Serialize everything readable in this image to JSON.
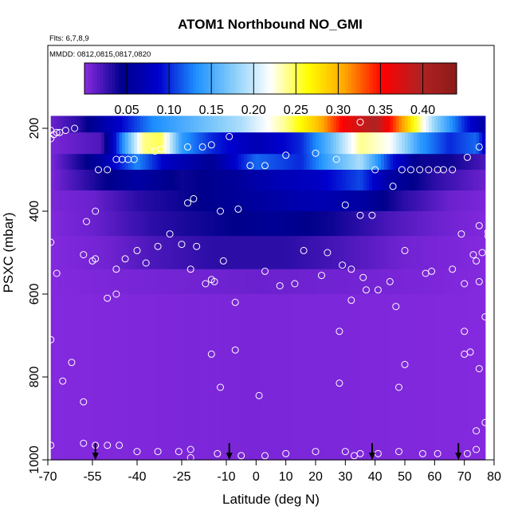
{
  "chart_data": {
    "type": "heatmap",
    "title": "ATOM1 Northbound NO_GMI",
    "notes": [
      "Flts: 6,7,8,9",
      "MMDD: 0812,0815,0817,0820"
    ],
    "xlabel": "Latitude (deg N)",
    "ylabel": "PSXC (mbar)",
    "xlim": [
      -70,
      80
    ],
    "ylim": [
      1000,
      0
    ],
    "x_ticks": [
      -70,
      -55,
      -40,
      -25,
      -10,
      0,
      10,
      20,
      30,
      40,
      50,
      60,
      70,
      80
    ],
    "x_tick_labels": [
      "-70",
      "-55",
      "-40",
      "-25",
      "-10",
      "0",
      "10",
      "20",
      "30",
      "40",
      "50",
      "60",
      "70",
      "80"
    ],
    "y_ticks": [
      200,
      400,
      600,
      800,
      1000
    ],
    "y_tick_labels": [
      "200",
      "400",
      "600",
      "800",
      "1000"
    ],
    "colorbar": {
      "min": 0,
      "max": 0.44,
      "ticks": [
        0.05,
        0.1,
        0.15,
        0.2,
        0.25,
        0.3,
        0.35,
        0.4
      ],
      "tick_labels": [
        "0.05",
        "0.10",
        "0.15",
        "0.20",
        "0.25",
        "0.30",
        "0.35",
        "0.40"
      ],
      "colors": [
        "#8a2be2",
        "#00008b",
        "#0000cd",
        "#1e90ff",
        "#87cefa",
        "#ffffff",
        "#ffff00",
        "#ffa500",
        "#ff0000",
        "#b22222",
        "#8b1a1a"
      ]
    },
    "field": {
      "x_range": [
        -69,
        77
      ],
      "p_top": 170,
      "p_bottom": 1000,
      "bands": [
        {
          "p": [
            170,
            210
          ],
          "profile": [
            [
              -69,
              0.01
            ],
            [
              -60,
              0.03
            ],
            [
              -50,
              0.07
            ],
            [
              -35,
              0.13
            ],
            [
              -20,
              0.16
            ],
            [
              -5,
              0.19
            ],
            [
              10,
              0.24
            ],
            [
              20,
              0.29
            ],
            [
              30,
              0.36
            ],
            [
              40,
              0.4
            ],
            [
              50,
              0.3
            ],
            [
              60,
              0.18
            ],
            [
              70,
              0.1
            ],
            [
              77,
              0.06
            ]
          ]
        },
        {
          "p": [
            210,
            262
          ],
          "profile": [
            [
              -69,
              0.005
            ],
            [
              -52,
              0.02
            ],
            [
              -45,
              0.13
            ],
            [
              -38,
              0.24
            ],
            [
              -32,
              0.25
            ],
            [
              -25,
              0.14
            ],
            [
              -15,
              0.1
            ],
            [
              0,
              0.07
            ],
            [
              15,
              0.1
            ],
            [
              25,
              0.16
            ],
            [
              35,
              0.24
            ],
            [
              45,
              0.22
            ],
            [
              55,
              0.14
            ],
            [
              65,
              0.1
            ],
            [
              74,
              0.12
            ],
            [
              77,
              0.08
            ]
          ]
        },
        {
          "p": [
            262,
            300
          ],
          "profile": [
            [
              -69,
              0.005
            ],
            [
              -52,
              0.06
            ],
            [
              -40,
              0.13
            ],
            [
              -30,
              0.08
            ],
            [
              -15,
              0.05
            ],
            [
              0,
              0.12
            ],
            [
              15,
              0.1
            ],
            [
              25,
              0.15
            ],
            [
              35,
              0.19
            ],
            [
              45,
              0.1
            ],
            [
              55,
              0.04
            ],
            [
              65,
              0.04
            ],
            [
              77,
              0.02
            ]
          ]
        },
        {
          "p": [
            300,
            350
          ],
          "profile": [
            [
              -69,
              0.005
            ],
            [
              -52,
              0.04
            ],
            [
              -40,
              0.06
            ],
            [
              -25,
              0.04
            ],
            [
              -10,
              0.05
            ],
            [
              5,
              0.07
            ],
            [
              20,
              0.08
            ],
            [
              35,
              0.11
            ],
            [
              45,
              0.06
            ],
            [
              60,
              0.03
            ],
            [
              77,
              0.01
            ]
          ]
        },
        {
          "p": [
            350,
            400
          ],
          "profile": [
            [
              -69,
              0.005
            ],
            [
              -55,
              0.01
            ],
            [
              -40,
              0.03
            ],
            [
              -25,
              0.04
            ],
            [
              -10,
              0.05
            ],
            [
              5,
              0.06
            ],
            [
              20,
              0.07
            ],
            [
              35,
              0.06
            ],
            [
              50,
              0.03
            ],
            [
              65,
              0.01
            ],
            [
              77,
              0.005
            ]
          ]
        },
        {
          "p": [
            400,
            460
          ],
          "profile": [
            [
              -69,
              0.003
            ],
            [
              -55,
              0.01
            ],
            [
              -35,
              0.03
            ],
            [
              -15,
              0.04
            ],
            [
              5,
              0.05
            ],
            [
              25,
              0.04
            ],
            [
              45,
              0.02
            ],
            [
              60,
              0.01
            ],
            [
              77,
              0.003
            ]
          ]
        },
        {
          "p": [
            460,
            540
          ],
          "profile": [
            [
              -69,
              0.002
            ],
            [
              -50,
              0.008
            ],
            [
              -35,
              0.02
            ],
            [
              -15,
              0.03
            ],
            [
              10,
              0.03
            ],
            [
              30,
              0.02
            ],
            [
              50,
              0.008
            ],
            [
              77,
              0.002
            ]
          ]
        },
        {
          "p": [
            540,
            600
          ],
          "profile": [
            [
              -69,
              0.002
            ],
            [
              -40,
              0.006
            ],
            [
              0,
              0.01
            ],
            [
              30,
              0.008
            ],
            [
              77,
              0.002
            ]
          ]
        },
        {
          "p": [
            600,
            1000
          ],
          "profile": [
            [
              -69,
              0.002
            ],
            [
              -30,
              0.004
            ],
            [
              0,
              0.005
            ],
            [
              30,
              0.004
            ],
            [
              77,
              0.002
            ]
          ]
        }
      ]
    },
    "observations": [
      [
        -69,
        205
      ],
      [
        -68,
        215
      ],
      [
        -67,
        210
      ],
      [
        -66,
        210
      ],
      [
        -64,
        205
      ],
      [
        -61,
        200
      ],
      [
        -69,
        225
      ],
      [
        -53,
        300
      ],
      [
        -50,
        300
      ],
      [
        -47,
        275
      ],
      [
        -45,
        275
      ],
      [
        -43,
        275
      ],
      [
        -41,
        275
      ],
      [
        -34,
        255
      ],
      [
        -32,
        250
      ],
      [
        -23,
        245
      ],
      [
        -18,
        245
      ],
      [
        -15,
        240
      ],
      [
        -9,
        220
      ],
      [
        -2,
        290
      ],
      [
        3,
        290
      ],
      [
        10,
        265
      ],
      [
        20,
        260
      ],
      [
        27,
        275
      ],
      [
        35,
        185
      ],
      [
        40,
        300
      ],
      [
        46,
        340
      ],
      [
        49,
        300
      ],
      [
        52,
        300
      ],
      [
        55,
        300
      ],
      [
        58,
        300
      ],
      [
        61,
        300
      ],
      [
        63,
        300
      ],
      [
        66,
        300
      ],
      [
        71,
        270
      ],
      [
        75,
        245
      ],
      [
        -54,
        400
      ],
      [
        -57,
        425
      ],
      [
        -23,
        380
      ],
      [
        -21,
        370
      ],
      [
        -12,
        400
      ],
      [
        -6,
        395
      ],
      [
        30,
        385
      ],
      [
        35,
        410
      ],
      [
        39,
        410
      ],
      [
        75,
        435
      ],
      [
        78,
        450
      ],
      [
        -69,
        475
      ],
      [
        -67,
        550
      ],
      [
        -58,
        505
      ],
      [
        -55,
        520
      ],
      [
        -54,
        515
      ],
      [
        -47,
        540
      ],
      [
        -44,
        515
      ],
      [
        -40,
        495
      ],
      [
        -37,
        525
      ],
      [
        -33,
        485
      ],
      [
        -29,
        455
      ],
      [
        -25,
        480
      ],
      [
        -22,
        540
      ],
      [
        -20,
        485
      ],
      [
        -17,
        575
      ],
      [
        -15,
        565
      ],
      [
        -11,
        520
      ],
      [
        3,
        545
      ],
      [
        8,
        580
      ],
      [
        13,
        575
      ],
      [
        16,
        495
      ],
      [
        22,
        555
      ],
      [
        24,
        500
      ],
      [
        29,
        530
      ],
      [
        32,
        540
      ],
      [
        36,
        560
      ],
      [
        41,
        590
      ],
      [
        45,
        570
      ],
      [
        50,
        495
      ],
      [
        57,
        550
      ],
      [
        59,
        545
      ],
      [
        66,
        540
      ],
      [
        69,
        455
      ],
      [
        70,
        575
      ],
      [
        73,
        505
      ],
      [
        74,
        520
      ],
      [
        75,
        570
      ],
      [
        76,
        500
      ],
      [
        78,
        460
      ],
      [
        -50,
        610
      ],
      [
        -47,
        600
      ],
      [
        -14,
        570
      ],
      [
        -7,
        620
      ],
      [
        32,
        615
      ],
      [
        37,
        590
      ],
      [
        47,
        630
      ],
      [
        70,
        690
      ],
      [
        77,
        655
      ],
      [
        -69,
        710
      ],
      [
        -62,
        765
      ],
      [
        -15,
        745
      ],
      [
        -7,
        735
      ],
      [
        28,
        690
      ],
      [
        50,
        770
      ],
      [
        70,
        745
      ],
      [
        72,
        740
      ],
      [
        75,
        780
      ],
      [
        -65,
        810
      ],
      [
        -58,
        860
      ],
      [
        -12,
        825
      ],
      [
        1,
        845
      ],
      [
        28,
        815
      ],
      [
        48,
        825
      ],
      [
        74,
        930
      ],
      [
        77,
        910
      ],
      [
        -69,
        965
      ],
      [
        -58,
        960
      ],
      [
        -54,
        965
      ],
      [
        -50,
        965
      ],
      [
        -46,
        965
      ],
      [
        -40,
        980
      ],
      [
        -33,
        980
      ],
      [
        -26,
        980
      ],
      [
        -22,
        975
      ],
      [
        -22,
        995
      ],
      [
        -13,
        985
      ],
      [
        -5,
        990
      ],
      [
        3,
        990
      ],
      [
        10,
        985
      ],
      [
        20,
        980
      ],
      [
        30,
        980
      ],
      [
        33,
        990
      ],
      [
        35,
        985
      ],
      [
        41,
        985
      ],
      [
        48,
        980
      ],
      [
        56,
        985
      ],
      [
        61,
        985
      ],
      [
        71,
        985
      ],
      [
        74,
        975
      ]
    ],
    "arrows_lat": [
      -54,
      -9,
      39,
      68
    ]
  }
}
